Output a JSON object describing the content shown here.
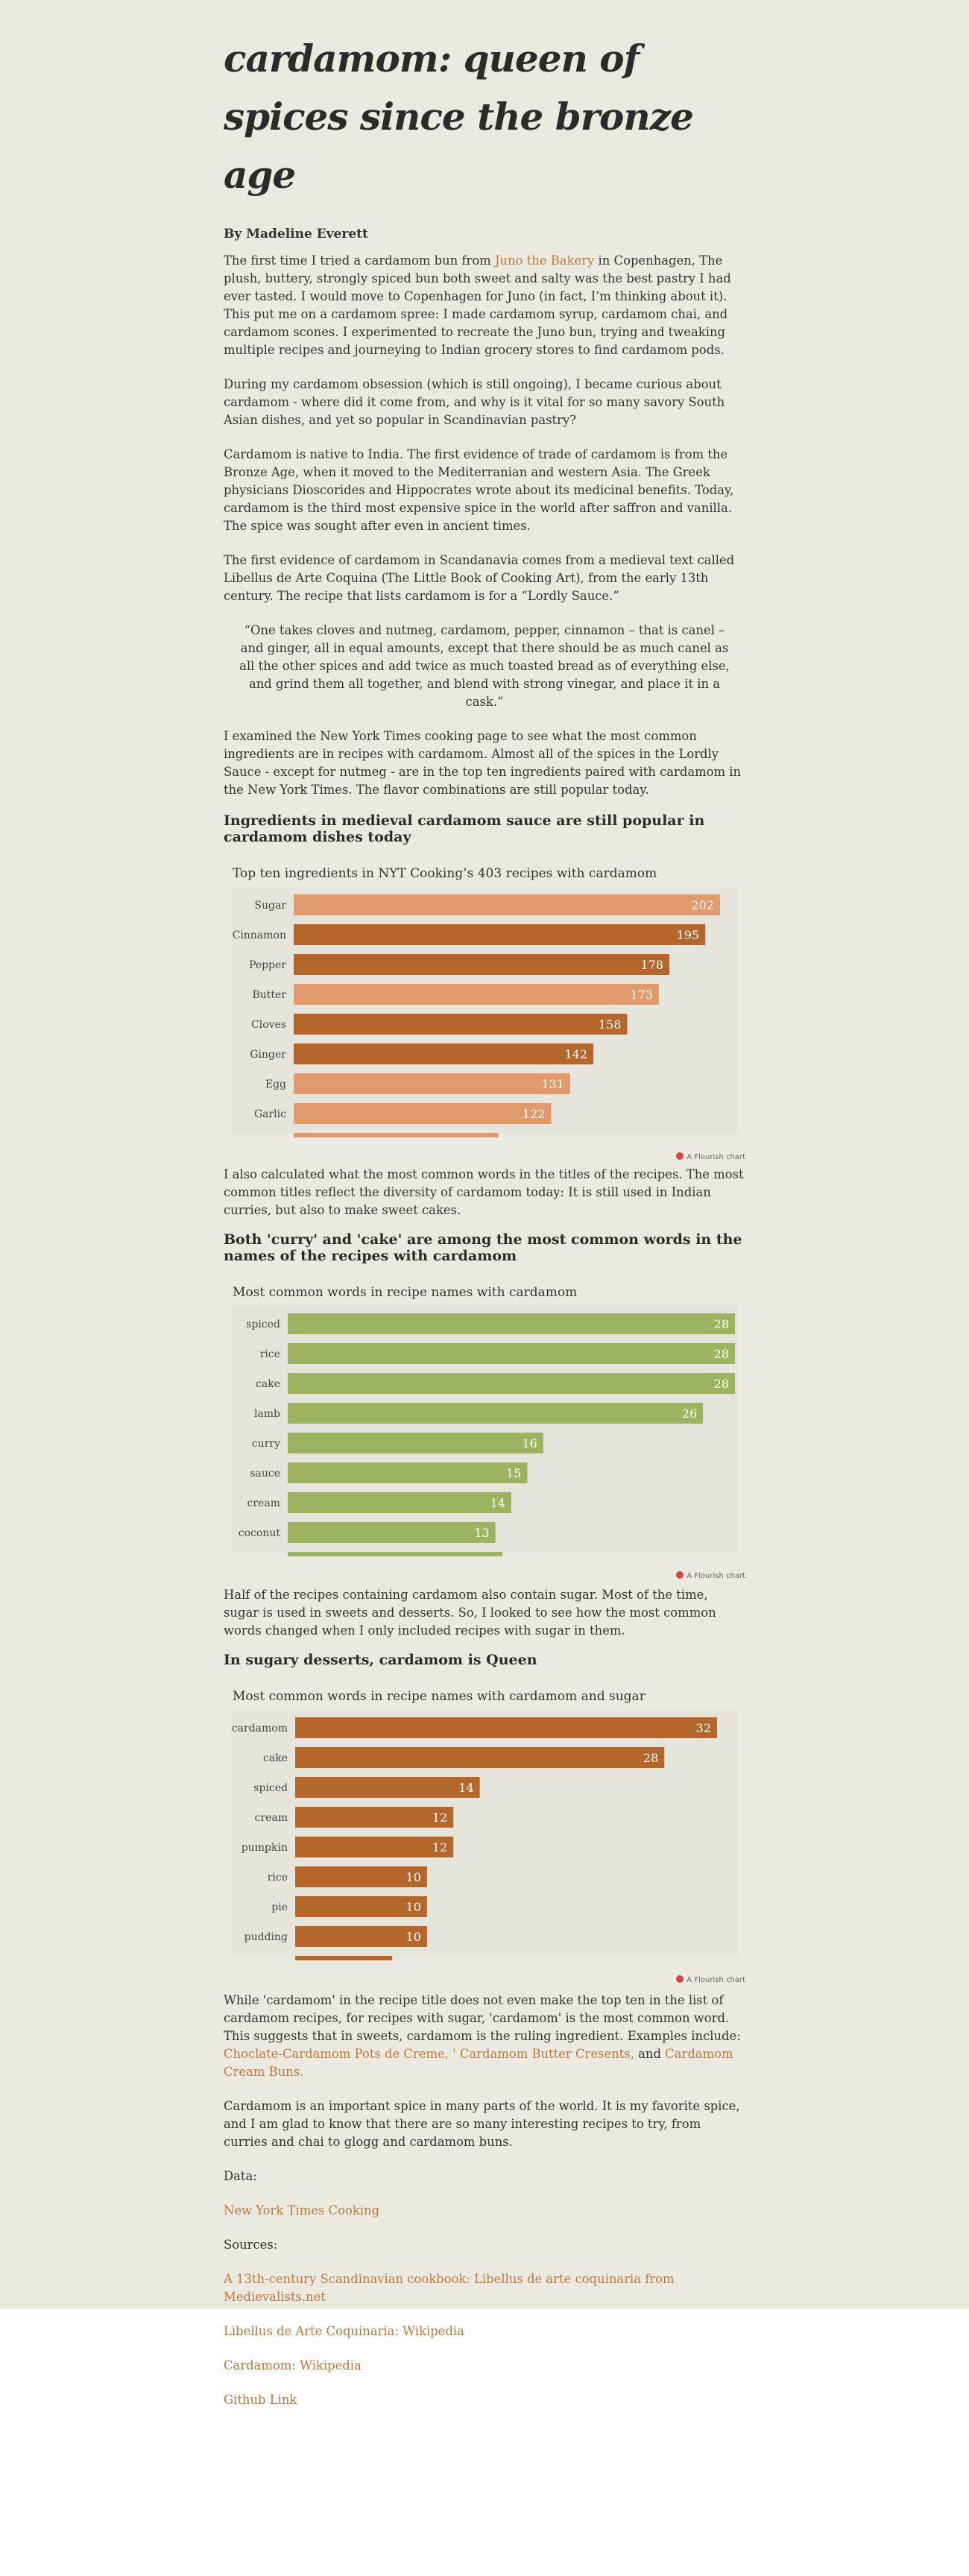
{
  "article": {
    "title": "cardamom: queen of spices since the bronze age",
    "byline": "By Madeline Everett",
    "p1_a": "The first time I tried a cardamom bun from ",
    "p1_link": "Juno the Bakery",
    "p1_b": " in Copenhagen, The plush, buttery, strongly spiced bun both sweet and salty was the best pastry I had ever tasted. I would move to Copenhagen for Juno (in fact, I’m thinking about it). This put me on a cardamom spree: I made cardamom syrup, cardamom chai, and cardamom scones. I experimented to recreate the Juno bun, trying and tweaking multiple recipes and journeying to Indian grocery stores to find cardamom pods.",
    "p2": "During my cardamom obsession (which is still ongoing), I became curious about cardamom - where did it come from, and why is it vital for so many savory South Asian dishes, and yet so popular in Scandinavian pastry?",
    "p3": "Cardamom is native to India. The first evidence of trade of cardamom is from the Bronze Age, when it moved to the Mediterranian and western Asia. The Greek physicians Dioscorides and Hippocrates wrote about its medicinal benefits. Today, cardamom is the third most expensive spice in the world after saffron and vanilla. The spice was sought after even in ancient times.",
    "p4": "The first evidence of cardamom in Scandanavia comes from a medieval text called Libellus de Arte Coquina (The Little Book of Cooking Art), from the early 13th century. The recipe that lists cardamom is for a “Lordly Sauce.”",
    "quote": "“One takes cloves and nutmeg, cardamom, pepper, cinnamon – that is canel – and ginger, all in equal amounts, except that there should be as much canel as all the other spices and add twice as much toasted bread as of everything else, and grind them all together, and blend with strong vinegar, and place it in a cask.”",
    "p5": "I examined the New York Times cooking page to see what the most common ingredients are in recipes with cardamom. Almost all of the spices in the Lordly Sauce - except for nutmeg - are in the top ten ingredients paired with cardamom in the New York Times. The flavor combinations are still popular today.",
    "h1": "Ingredients in medieval cardamom sauce are still popular in cardamom dishes today",
    "p6": "I also calculated what the most common words in the titles of the recipes. The most common titles reflect the diversity of cardamom today: It is still used in Indian curries, but also to make sweet cakes.",
    "h2": "Both 'curry' and 'cake' are among the most common words in the names of the recipes with cardamom",
    "p7": "Half of the recipes containing cardamom also contain sugar. Most of the time, sugar is used in sweets and desserts. So, I looked to see how the most common words changed when I only included recipes with sugar in them.",
    "h3": "In sugary desserts, cardamom is Queen",
    "p8_a": "While 'cardamom' in the recipe title does not even make the top ten in the list of cardamom recipes, for recipes with sugar, 'cardamom' is the most common word. This suggests that in sweets, cardamom is the ruling ingredient. Examples include: ",
    "p8_link1": "Choclate-Cardamom Pots de Creme,",
    "p8_mid1": " ",
    "p8_link2": "' Cardamom Butter Cresents,",
    "p8_mid2": " and ",
    "p8_link3": "Cardamom Cream Buns.",
    "p9": "Cardamom is an important spice in many parts of the world. It is my favorite spice, and I am glad to know that there are so many interesting recipes to try, from curries and chai to glogg and cardamom buns.",
    "data_label": "Data:",
    "data_link": "New York Times Cooking",
    "sources_label": "Sources:",
    "source1": "A 13th-century Scandinavian cookbook: Libellus de arte coquinaria from Medievalists.net",
    "source2": "Libellus de Arte Coquinaria: Wikipedia",
    "source3": "Cardamom: Wikipedia",
    "github": "Github Link",
    "flourish_credit": "A Flourish chart"
  },
  "chart_data": [
    {
      "type": "bar",
      "orientation": "horizontal",
      "title": "Top ten ingredients in NYT Cooking’s 403 recipes with cardamom",
      "categories": [
        "Sugar",
        "Cinnamon",
        "Pepper",
        "Butter",
        "Cloves",
        "Ginger",
        "Egg",
        "Garlic"
      ],
      "values": [
        202,
        195,
        178,
        173,
        158,
        142,
        131,
        122
      ],
      "bar_colors": [
        "#e09a6b",
        "#b5672b",
        "#b5672b",
        "#e09a6b",
        "#b5672b",
        "#b5672b",
        "#e09a6b",
        "#e09a6b"
      ],
      "xmax": 202,
      "grid": false
    },
    {
      "type": "bar",
      "orientation": "horizontal",
      "title": "Most common words in recipe names with cardamom",
      "categories": [
        "spiced",
        "rice",
        "cake",
        "lamb",
        "curry",
        "sauce",
        "cream",
        "coconut"
      ],
      "values": [
        28,
        28,
        28,
        26,
        16,
        15,
        14,
        13
      ],
      "bar_colors": [
        "#9db35f"
      ],
      "xmax": 28,
      "grid": false
    },
    {
      "type": "bar",
      "orientation": "horizontal",
      "title": "Most common words in recipe names with cardamom and sugar",
      "categories": [
        "cardamom",
        "cake",
        "spiced",
        "cream",
        "pumpkin",
        "rice",
        "pie",
        "pudding"
      ],
      "values": [
        32,
        28,
        14,
        12,
        12,
        10,
        10,
        10
      ],
      "bar_colors": [
        "#b5672b"
      ],
      "xmax": 32,
      "grid": false
    }
  ]
}
